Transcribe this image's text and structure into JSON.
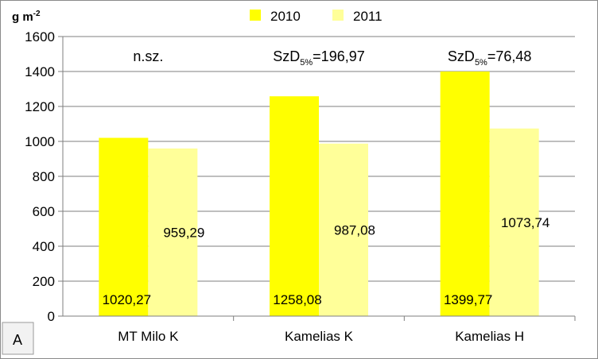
{
  "chart_data": {
    "type": "bar",
    "unit_label": {
      "base": "g m",
      "exp": "-2"
    },
    "panel_label": "A",
    "categories": [
      "MT Milo K",
      "Kamelias K",
      "Kamelias H"
    ],
    "series": [
      {
        "name": "2010",
        "color": "#ffff00",
        "values": [
          1020.27,
          1258.08,
          1399.77
        ],
        "labels": [
          "1020,27",
          "1258,08",
          "1399,77"
        ]
      },
      {
        "name": "2011",
        "color": "#ffff99",
        "values": [
          959.29,
          987.08,
          1073.74
        ],
        "labels": [
          "959,29",
          "987,08",
          "1073,74"
        ]
      }
    ],
    "annotations": [
      {
        "text": "n.sz."
      },
      {
        "base": "SzD",
        "sub": "5%",
        "rest": "=196,97"
      },
      {
        "base": "SzD",
        "sub": "5%",
        "rest": "=76,48"
      }
    ],
    "ylim": [
      0,
      1600
    ],
    "yticks": [
      0,
      200,
      400,
      600,
      800,
      1000,
      1200,
      1400,
      1600
    ],
    "grid": true,
    "legend_position": "top-center",
    "grid_color": "#7f7f7f",
    "axis_color": "#7f7f7f"
  }
}
